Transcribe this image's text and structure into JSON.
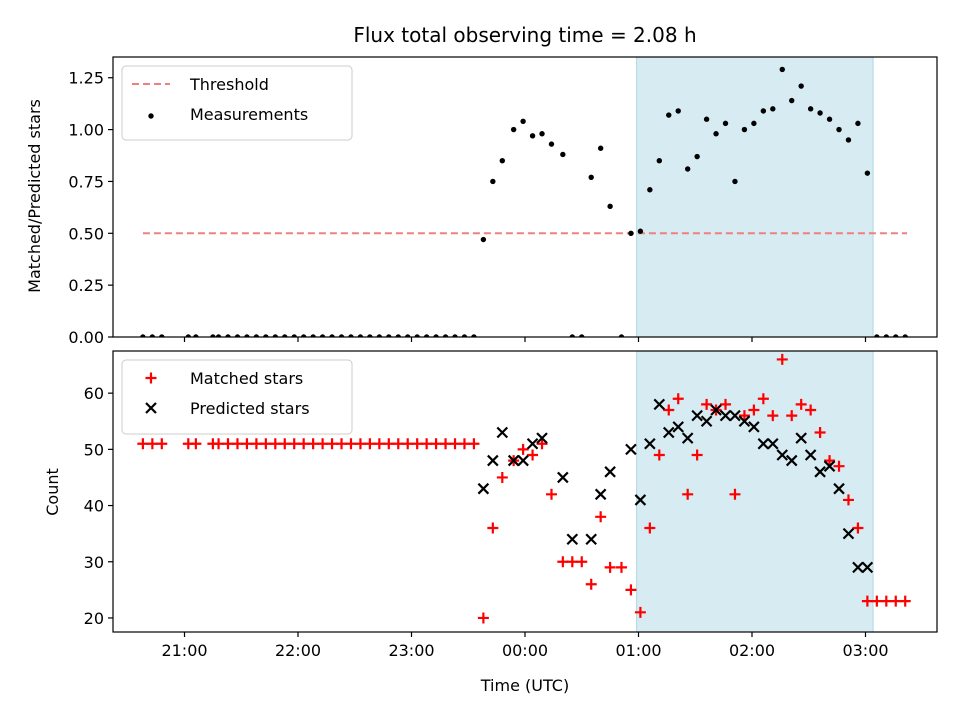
{
  "chart_data": [
    {
      "type": "scatter",
      "title": "Flux total observing time = 2.08 h",
      "ylabel": "Matched/Predicted stars",
      "xlabel": "",
      "x_unit": "hours since 2023-00-00 00:00 UTC is not printed; x values are clock times as hours relative to 00:00 (negative = previous day)",
      "xlim": [
        -3.63,
        3.63
      ],
      "ylim": [
        0.0,
        1.35
      ],
      "yticks": [
        "0.00",
        "0.25",
        "0.50",
        "0.75",
        "1.00",
        "1.25"
      ],
      "grid": false,
      "legend_position": "upper-left",
      "shaded_interval": [
        "00:59",
        "03:04"
      ],
      "series": [
        {
          "name": "Threshold",
          "kind": "dashed-line",
          "color": "#f08080",
          "x": [
            "20:38",
            "03:22"
          ],
          "y": [
            0.5,
            0.5
          ]
        },
        {
          "name": "Measurements",
          "kind": "dots",
          "color": "#000000",
          "x": [
            "20:38",
            "20:43",
            "20:48",
            "21:02",
            "21:06",
            "21:15",
            "21:18",
            "21:23",
            "21:28",
            "21:33",
            "21:38",
            "21:43",
            "21:48",
            "21:53",
            "21:58",
            "22:03",
            "22:08",
            "22:13",
            "22:18",
            "22:23",
            "22:28",
            "22:33",
            "22:38",
            "22:43",
            "22:48",
            "22:53",
            "22:58",
            "23:03",
            "23:08",
            "23:13",
            "23:18",
            "23:23",
            "23:28",
            "23:33",
            "23:38",
            "23:43",
            "23:48",
            "23:54",
            "23:59",
            "00:04",
            "00:09",
            "00:14",
            "00:20",
            "00:25",
            "00:30",
            "00:35",
            "00:40",
            "00:45",
            "00:51",
            "00:56",
            "01:01",
            "01:06",
            "01:11",
            "01:16",
            "01:21",
            "01:26",
            "01:31",
            "01:36",
            "01:41",
            "01:46",
            "01:51",
            "01:56",
            "02:01",
            "02:06",
            "02:11",
            "02:16",
            "02:21",
            "02:26",
            "02:31",
            "02:36",
            "02:41",
            "02:46",
            "02:51",
            "02:56",
            "03:01",
            "03:06",
            "03:11",
            "03:16",
            "03:21"
          ],
          "y": [
            0,
            0,
            0,
            0,
            0,
            0,
            0,
            0,
            0,
            0,
            0,
            0,
            0,
            0,
            0,
            0,
            0,
            0,
            0,
            0,
            0,
            0,
            0,
            0,
            0,
            0,
            0,
            0,
            0,
            0,
            0,
            0,
            0,
            0,
            0.47,
            0.75,
            0.85,
            1.0,
            1.04,
            0.97,
            0.98,
            0.93,
            0.88,
            0,
            0,
            0.77,
            0.91,
            0.63,
            0,
            0.5,
            0.51,
            0.71,
            0.85,
            1.07,
            1.09,
            0.81,
            0.87,
            1.05,
            0.98,
            1.03,
            0.75,
            1.0,
            1.03,
            1.09,
            1.1,
            1.29,
            1.14,
            1.21,
            1.1,
            1.08,
            1.05,
            1.0,
            0.95,
            1.03,
            0.79,
            0,
            0,
            0,
            0
          ]
        }
      ]
    },
    {
      "type": "scatter",
      "title": "",
      "ylabel": "Count",
      "xlabel": "Time (UTC)",
      "xlim": [
        -3.63,
        3.63
      ],
      "ylim": [
        17.5,
        67.5
      ],
      "yticks": [
        "20",
        "30",
        "40",
        "50",
        "60"
      ],
      "xticks": [
        "21:00",
        "22:00",
        "23:00",
        "00:00",
        "01:00",
        "02:00",
        "03:00"
      ],
      "grid": false,
      "legend_position": "upper-left",
      "shaded_interval": [
        "00:59",
        "03:04"
      ],
      "series": [
        {
          "name": "Matched stars",
          "kind": "plus",
          "color": "#ff0000",
          "x": [
            "20:38",
            "20:43",
            "20:48",
            "21:02",
            "21:06",
            "21:15",
            "21:18",
            "21:23",
            "21:28",
            "21:33",
            "21:38",
            "21:43",
            "21:48",
            "21:53",
            "21:58",
            "22:03",
            "22:08",
            "22:13",
            "22:18",
            "22:23",
            "22:28",
            "22:33",
            "22:38",
            "22:43",
            "22:48",
            "22:53",
            "22:58",
            "23:03",
            "23:08",
            "23:13",
            "23:18",
            "23:23",
            "23:28",
            "23:33",
            "23:38",
            "23:43",
            "23:48",
            "23:54",
            "23:59",
            "00:04",
            "00:09",
            "00:14",
            "00:20",
            "00:25",
            "00:30",
            "00:35",
            "00:40",
            "00:45",
            "00:51",
            "00:56",
            "01:01",
            "01:06",
            "01:11",
            "01:16",
            "01:21",
            "01:26",
            "01:31",
            "01:36",
            "01:41",
            "01:46",
            "01:51",
            "01:56",
            "02:01",
            "02:06",
            "02:11",
            "02:16",
            "02:21",
            "02:26",
            "02:31",
            "02:36",
            "02:41",
            "02:46",
            "02:51",
            "02:56",
            "03:01",
            "03:06",
            "03:11",
            "03:16",
            "03:21"
          ],
          "y": [
            51,
            51,
            51,
            51,
            51,
            51,
            51,
            51,
            51,
            51,
            51,
            51,
            51,
            51,
            51,
            51,
            51,
            51,
            51,
            51,
            51,
            51,
            51,
            51,
            51,
            51,
            51,
            51,
            51,
            51,
            51,
            51,
            51,
            51,
            20,
            36,
            45,
            48,
            50,
            49,
            51,
            42,
            30,
            30,
            30,
            26,
            38,
            29,
            29,
            25,
            21,
            36,
            49,
            57,
            59,
            42,
            49,
            58,
            57,
            58,
            42,
            56,
            57,
            59,
            56,
            66,
            56,
            58,
            57,
            53,
            48,
            47,
            41,
            36,
            23,
            23,
            23,
            23,
            23
          ]
        },
        {
          "name": "Predicted stars",
          "kind": "x",
          "color": "#000000",
          "x": [
            "23:38",
            "23:43",
            "23:48",
            "23:54",
            "23:59",
            "00:04",
            "00:09",
            "00:20",
            "00:25",
            "00:35",
            "00:40",
            "00:45",
            "00:56",
            "01:01",
            "01:06",
            "01:11",
            "01:16",
            "01:21",
            "01:26",
            "01:31",
            "01:36",
            "01:41",
            "01:46",
            "01:51",
            "01:56",
            "02:01",
            "02:06",
            "02:11",
            "02:16",
            "02:21",
            "02:26",
            "02:31",
            "02:36",
            "02:41",
            "02:46",
            "02:51",
            "02:56",
            "03:01"
          ],
          "y": [
            43,
            48,
            53,
            48,
            48,
            51,
            52,
            45,
            34,
            34,
            42,
            46,
            50,
            41,
            51,
            58,
            53,
            54,
            52,
            56,
            55,
            57,
            56,
            56,
            55,
            54,
            51,
            51,
            49,
            48,
            52,
            49,
            46,
            47,
            43,
            35,
            29,
            29
          ]
        }
      ]
    }
  ]
}
